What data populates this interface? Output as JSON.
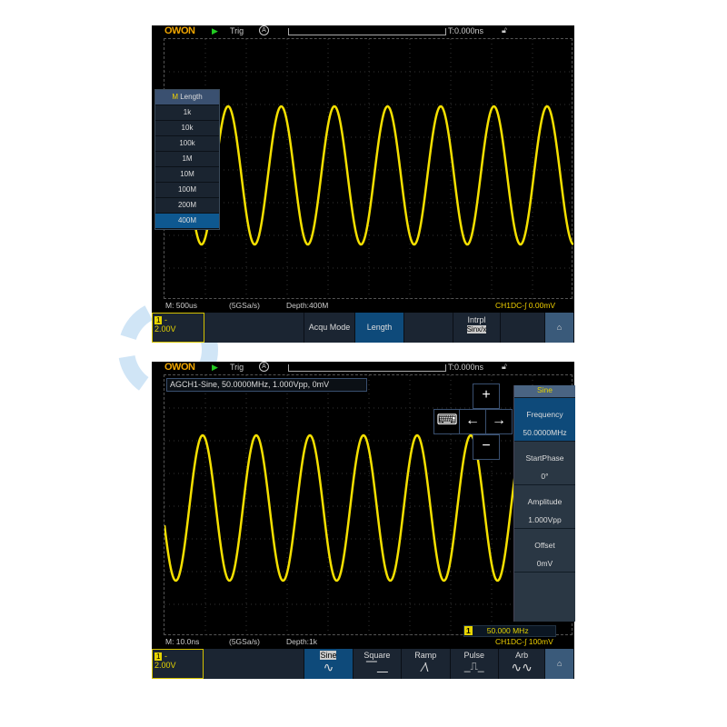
{
  "screen1": {
    "logo": "OWON",
    "trig": "Trig",
    "trig_mode": "A",
    "time_pos": "T:0.000ns",
    "timebase": "M: 500us",
    "sample_rate": "(5GSa/s)",
    "depth": "Depth:400M",
    "trigger_info": "CH1DC-∫ 0.00mV",
    "ch1": {
      "num": "1",
      "coupling": "-",
      "scale": "2.00V"
    },
    "menu": {
      "title": "Length",
      "title_badge": "M",
      "items": [
        "1k",
        "10k",
        "100k",
        "1M",
        "10M",
        "100M",
        "200M",
        "400M"
      ],
      "selected": "400M"
    },
    "buttons": {
      "acqu_mode": "Acqu Mode",
      "length": "Length",
      "intrpl": "Intrpl",
      "intrpl_value": "Sinx/x"
    }
  },
  "screen2": {
    "logo": "OWON",
    "trig": "Trig",
    "trig_mode": "A",
    "time_pos": "T:0.000ns",
    "info": "AGCH1-Sine, 50.0000MHz, 1.000Vpp, 0mV",
    "timebase": "M: 10.0ns",
    "sample_rate": "(5GSa/s)",
    "depth": "Depth:1k",
    "trigger_info": "CH1DC-∫ 100mV",
    "freq_counter": {
      "ch": "1",
      "value": "50.000 MHz"
    },
    "ch1": {
      "num": "1",
      "coupling": "-",
      "scale": "2.00V"
    },
    "panel": {
      "title": "Sine",
      "frequency_label": "Frequency",
      "frequency_value": "50.0000MHz",
      "phase_label": "StartPhase",
      "phase_value": "0°",
      "amp_label": "Amplitude",
      "amp_value": "1.000Vpp",
      "offset_label": "Offset",
      "offset_value": "0mV"
    },
    "pad": {
      "plus": "+",
      "minus": "−",
      "left": "←",
      "right": "→",
      "keyboard": "⌨"
    },
    "waves": [
      "Sine",
      "Square",
      "Ramp",
      "Pulse",
      "Arb"
    ],
    "selected_wave": "Sine"
  },
  "colors": {
    "trace": "#f5e000",
    "menu_selected": "#0e5890",
    "panel": "#2a3744"
  },
  "home_icon": "home-icon"
}
